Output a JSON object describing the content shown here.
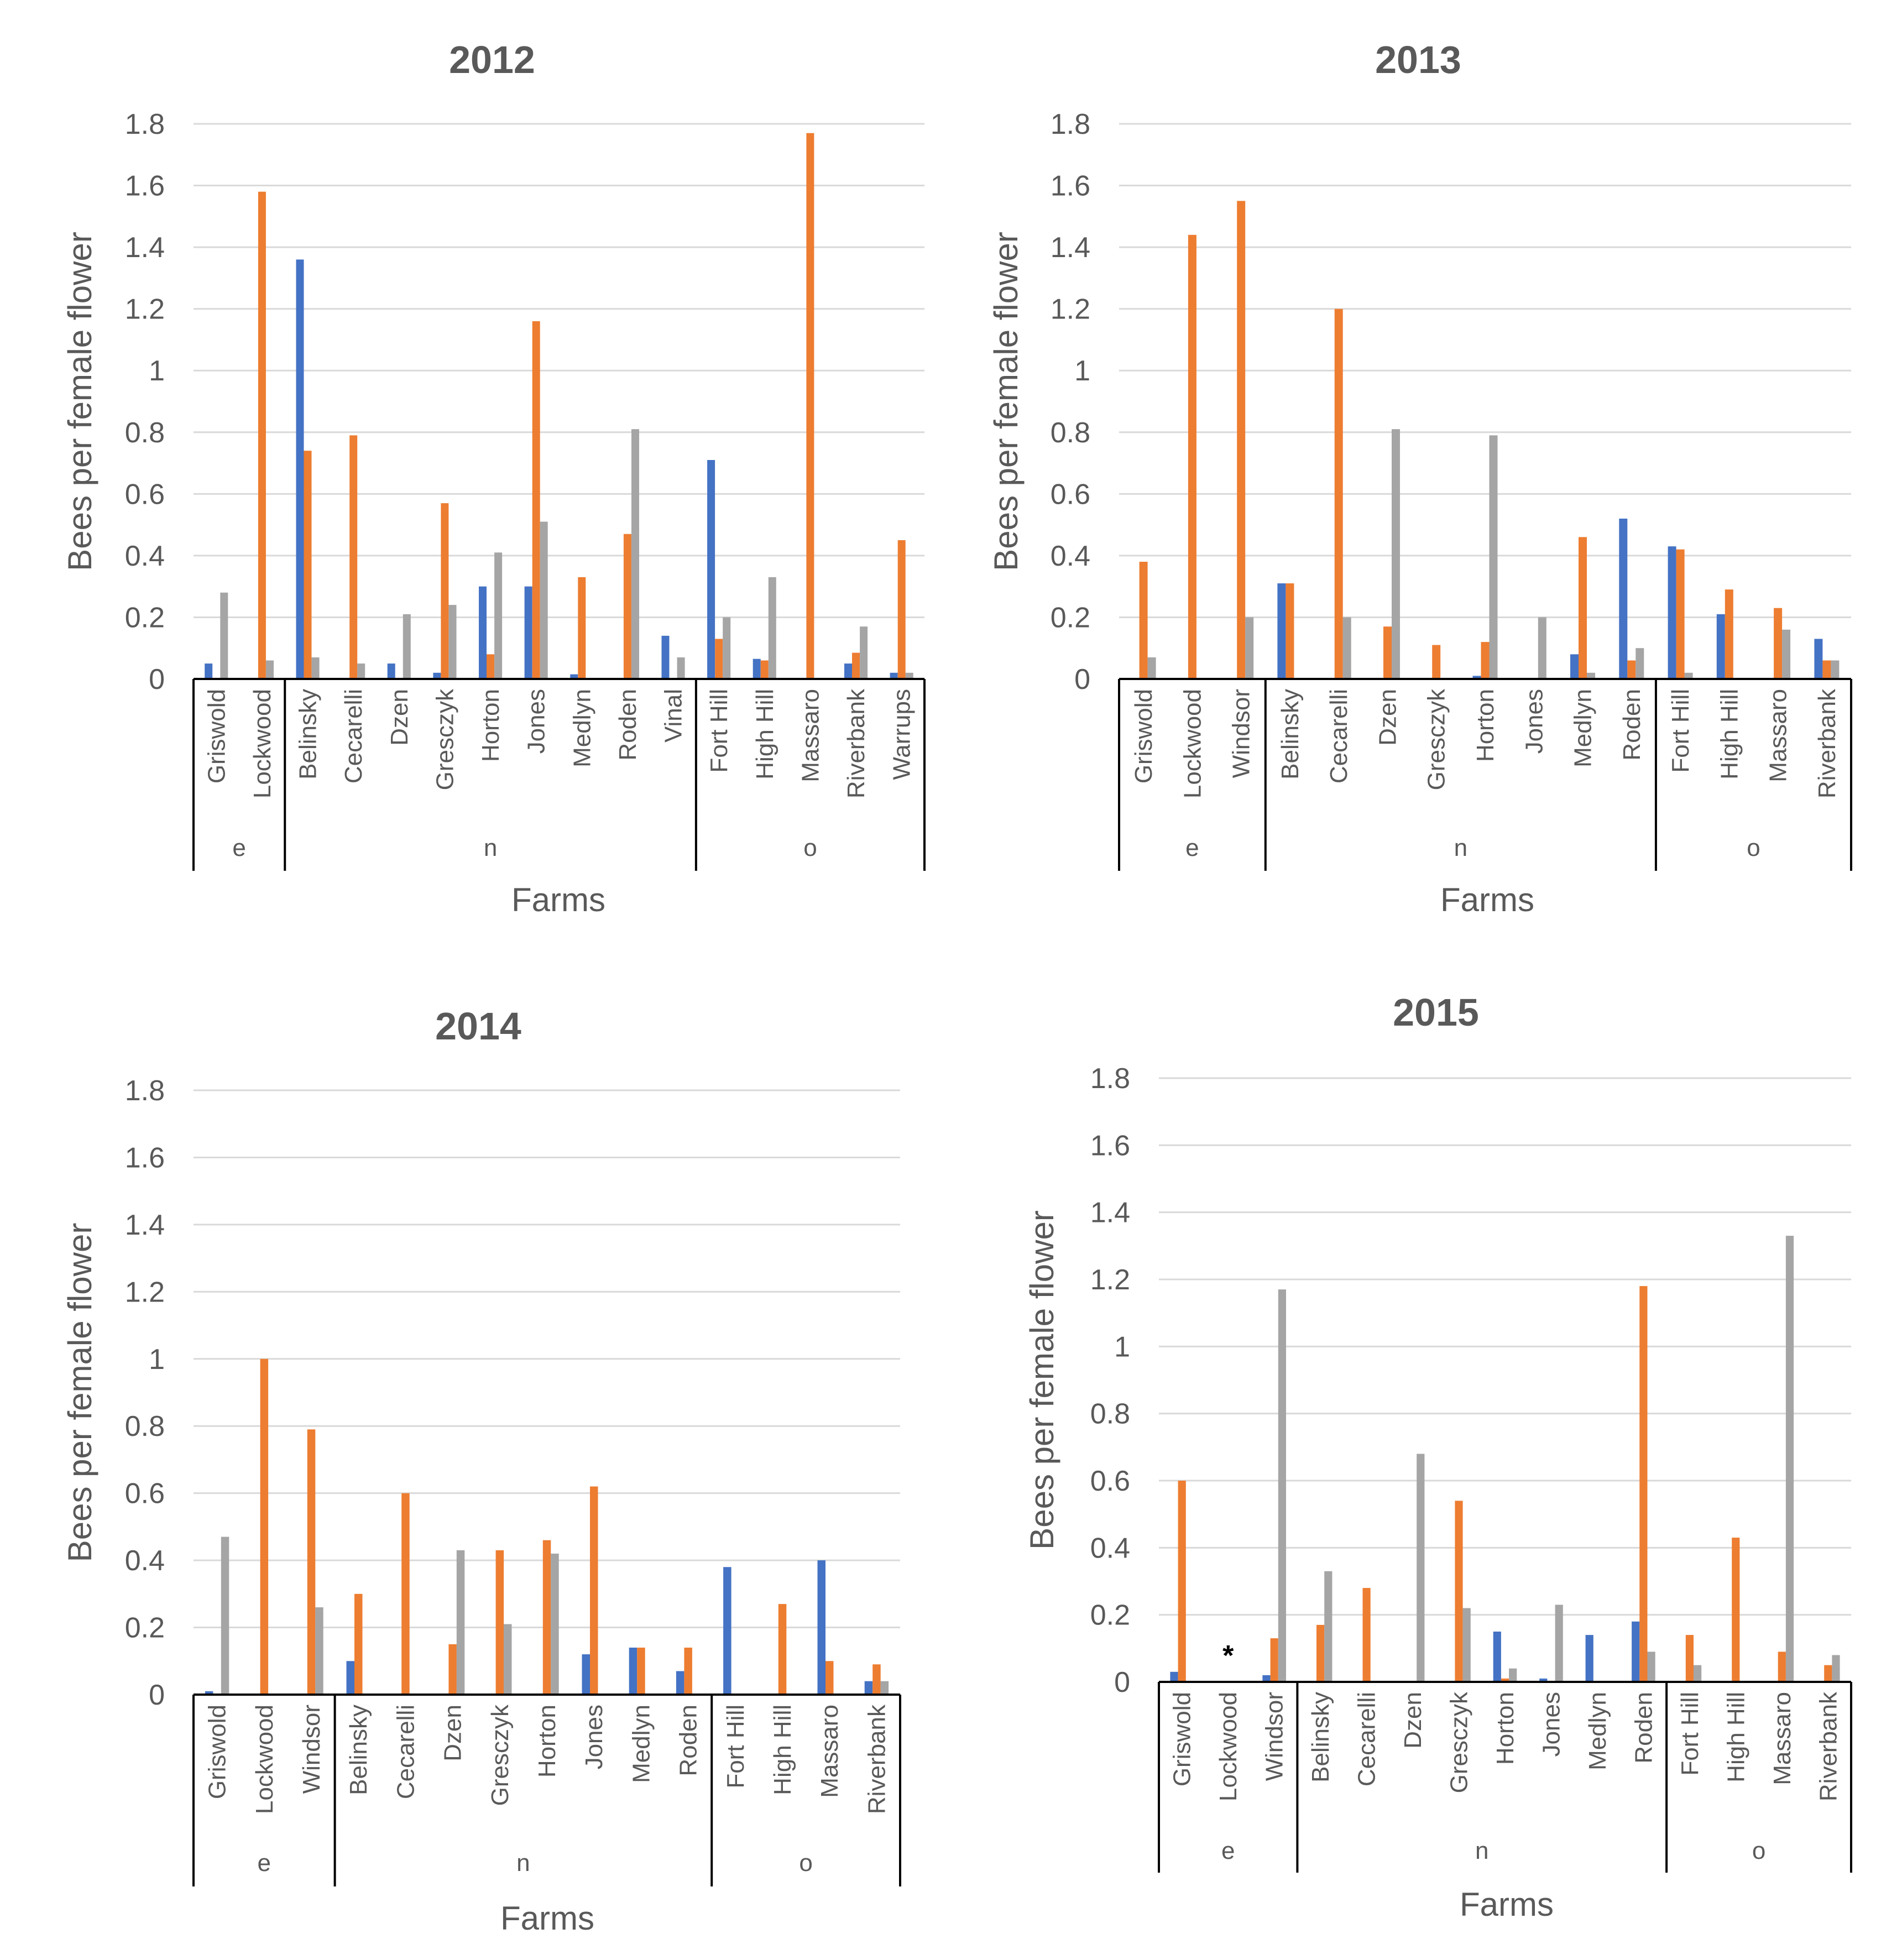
{
  "colors": {
    "series1": "#4472c4",
    "series2": "#ed7d31",
    "series3": "#a5a5a5"
  },
  "chart_data": [
    {
      "type": "bar",
      "title": "2012",
      "xlabel": "Farms",
      "ylabel": "Bees per female flower",
      "ylim": [
        0,
        1.8
      ],
      "yticks": [
        "0",
        "0.2",
        "0.4",
        "0.6",
        "0.8",
        "1",
        "1.2",
        "1.4",
        "1.6",
        "1.8"
      ],
      "groups": [
        {
          "label": "e",
          "categories": [
            "Griswold",
            "Lockwood"
          ]
        },
        {
          "label": "n",
          "categories": [
            "Belinsky",
            "Cecarelli",
            "Dzen",
            "Gresczyk",
            "Horton",
            "Jones",
            "Medlyn",
            "Roden",
            "Vinal"
          ]
        },
        {
          "label": "o",
          "categories": [
            "Fort Hill",
            "High Hill",
            "Massaro",
            "Riverbank",
            "Warrups"
          ]
        }
      ],
      "series": [
        {
          "values": [
            0.05,
            0,
            1.36,
            0,
            0.05,
            0.02,
            0.3,
            0.3,
            0.015,
            0,
            0.14,
            0.71,
            0.065,
            0,
            0.05,
            0.02
          ]
        },
        {
          "values": [
            0,
            1.58,
            0.74,
            0.79,
            0,
            0.57,
            0.08,
            1.16,
            0.33,
            0.47,
            0,
            0.13,
            0.06,
            1.77,
            0.085,
            0.45
          ]
        },
        {
          "values": [
            0.28,
            0.06,
            0.07,
            0.05,
            0.21,
            0.24,
            0.41,
            0.51,
            0,
            0.81,
            0.07,
            0.2,
            0.33,
            0,
            0.17,
            0.02
          ]
        }
      ]
    },
    {
      "type": "bar",
      "title": "2013",
      "xlabel": "Farms",
      "ylabel": "Bees per female flower",
      "ylim": [
        0,
        1.8
      ],
      "yticks": [
        "0",
        "0.2",
        "0.4",
        "0.6",
        "0.8",
        "1",
        "1.2",
        "1.4",
        "1.6",
        "1.8"
      ],
      "groups": [
        {
          "label": "e",
          "categories": [
            "Griswold",
            "Lockwood",
            "Windsor"
          ]
        },
        {
          "label": "n",
          "categories": [
            "Belinsky",
            "Cecarelli",
            "Dzen",
            "Gresczyk",
            "Horton",
            "Jones",
            "Medlyn",
            "Roden"
          ]
        },
        {
          "label": "o",
          "categories": [
            "Fort Hill",
            "High Hill",
            "Massaro",
            "Riverbank"
          ]
        }
      ],
      "series": [
        {
          "values": [
            0,
            0,
            0,
            0.31,
            0,
            0,
            0,
            0.01,
            0,
            0.08,
            0.52,
            0.43,
            0.21,
            0,
            0.13
          ]
        },
        {
          "values": [
            0.38,
            1.44,
            1.55,
            0.31,
            1.2,
            0.17,
            0.11,
            0.12,
            0,
            0.46,
            0.06,
            0.42,
            0.29,
            0.23,
            0.06
          ]
        },
        {
          "values": [
            0.07,
            0,
            0.2,
            0,
            0.2,
            0.81,
            0,
            0.79,
            0.2,
            0.02,
            0.1,
            0.02,
            0,
            0.16,
            0.06
          ]
        }
      ]
    },
    {
      "type": "bar",
      "title": "2014",
      "xlabel": "Farms",
      "ylabel": "Bees per female flower",
      "ylim": [
        0,
        1.8
      ],
      "yticks": [
        "0",
        "0.2",
        "0.4",
        "0.6",
        "0.8",
        "1",
        "1.2",
        "1.4",
        "1.6",
        "1.8"
      ],
      "groups": [
        {
          "label": "e",
          "categories": [
            "Griswold",
            "Lockwood",
            "Windsor"
          ]
        },
        {
          "label": "n",
          "categories": [
            "Belinsky",
            "Cecarelli",
            "Dzen",
            "Gresczyk",
            "Horton",
            "Jones",
            "Medlyn",
            "Roden"
          ]
        },
        {
          "label": "o",
          "categories": [
            "Fort Hill",
            "High Hill",
            "Massaro",
            "Riverbank"
          ]
        }
      ],
      "series": [
        {
          "values": [
            0.01,
            0,
            0,
            0.1,
            0,
            0,
            0,
            0,
            0.12,
            0.14,
            0.07,
            0.38,
            0,
            0.4,
            0.04
          ]
        },
        {
          "values": [
            0,
            1.0,
            0.79,
            0.3,
            0.6,
            0.15,
            0.43,
            0.46,
            0.62,
            0.14,
            0.14,
            0,
            0.27,
            0.1,
            0.09
          ]
        },
        {
          "values": [
            0.47,
            0,
            0.26,
            0,
            0,
            0.43,
            0.21,
            0.42,
            0,
            0,
            0,
            0,
            0,
            0,
            0.04
          ]
        }
      ]
    },
    {
      "type": "bar",
      "title": "2015",
      "xlabel": "Farms",
      "ylabel": "Bees per female flower",
      "ylim": [
        0,
        1.8
      ],
      "yticks": [
        "0",
        "0.2",
        "0.4",
        "0.6",
        "0.8",
        "1",
        "1.2",
        "1.4",
        "1.6",
        "1.8"
      ],
      "annotation": {
        "text": "*",
        "category": "Lockwood"
      },
      "groups": [
        {
          "label": "e",
          "categories": [
            "Griswold",
            "Lockwood",
            "Windsor"
          ]
        },
        {
          "label": "n",
          "categories": [
            "Belinsky",
            "Cecarelli",
            "Dzen",
            "Gresczyk",
            "Horton",
            "Jones",
            "Medlyn",
            "Roden"
          ]
        },
        {
          "label": "o",
          "categories": [
            "Fort Hill",
            "High Hill",
            "Massaro",
            "Riverbank"
          ]
        }
      ],
      "series": [
        {
          "values": [
            0.03,
            0,
            0.02,
            0,
            0,
            0,
            0,
            0.15,
            0.01,
            0.14,
            0.18,
            0,
            0,
            0,
            0
          ]
        },
        {
          "values": [
            0.6,
            0,
            0.13,
            0.17,
            0.28,
            0,
            0.54,
            0.01,
            0,
            0,
            1.18,
            0.14,
            0.43,
            0.09,
            0.05
          ]
        },
        {
          "values": [
            0,
            0,
            1.17,
            0.33,
            0,
            0.68,
            0.22,
            0.04,
            0.23,
            0,
            0.09,
            0.05,
            0,
            1.33,
            0.08
          ]
        }
      ]
    }
  ]
}
